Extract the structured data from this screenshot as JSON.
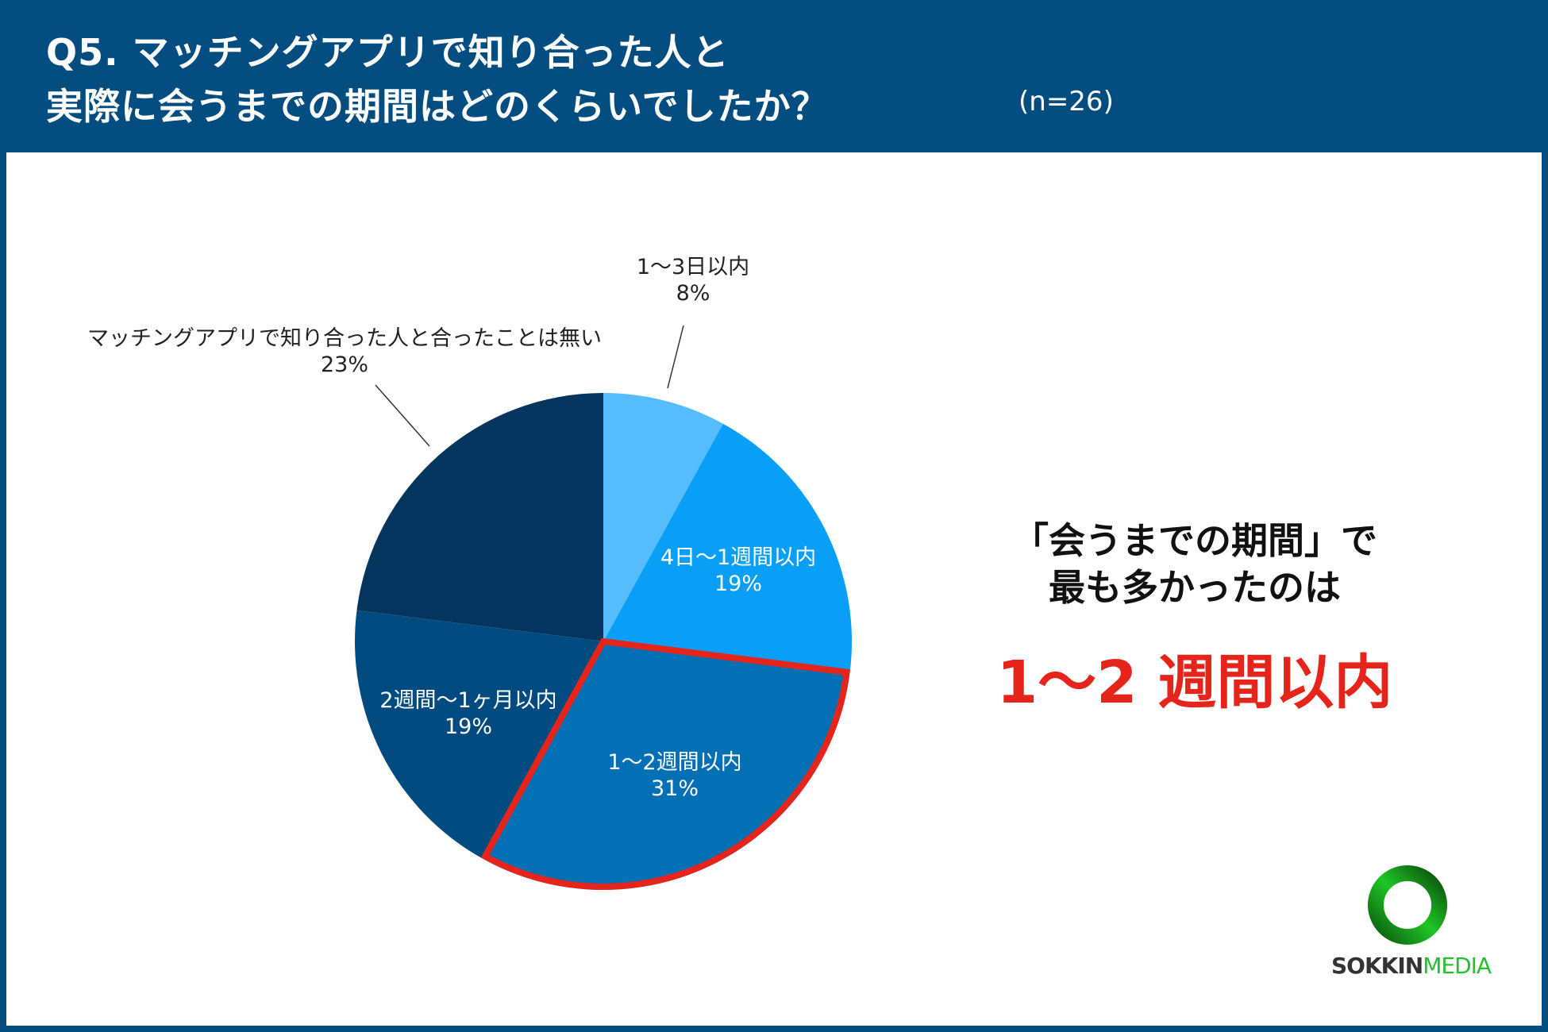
{
  "header": {
    "title_line1": "Q5. マッチングアプリで知り合った人と",
    "title_line2": "実際に会うまでの期間はどのくらいでしたか？",
    "sample": "(n=26)"
  },
  "chart_data": {
    "type": "pie",
    "start": "top",
    "direction": "clockwise",
    "slices": [
      {
        "label": "1〜3日以内",
        "value": 8,
        "value_label": "8%",
        "color": "#55bdfd"
      },
      {
        "label": "4日〜1週間以内",
        "value": 19,
        "value_label": "19%",
        "color": "#0a9ff6"
      },
      {
        "label": "1〜2週間以内",
        "value": 31,
        "value_label": "31%",
        "color": "#0370b5",
        "highlight": true
      },
      {
        "label": "2週間〜1ヶ月以内",
        "value": 19,
        "value_label": "19%",
        "color": "#024b80"
      },
      {
        "label": "マッチングアプリで知り合った人と合ったことは無い",
        "value": 23,
        "value_label": "23%",
        "color": "#03355e"
      }
    ],
    "highlight_color": "#e5251b"
  },
  "highlight": {
    "line1": "「会うまでの期間」で",
    "line2": "最も多かったのは",
    "answer": "1〜2 週間以内"
  },
  "logo": {
    "part1": "SOKKIN",
    "part2": "MEDIA",
    "colors": {
      "dark": "#333333",
      "green": "#22c32a"
    }
  }
}
